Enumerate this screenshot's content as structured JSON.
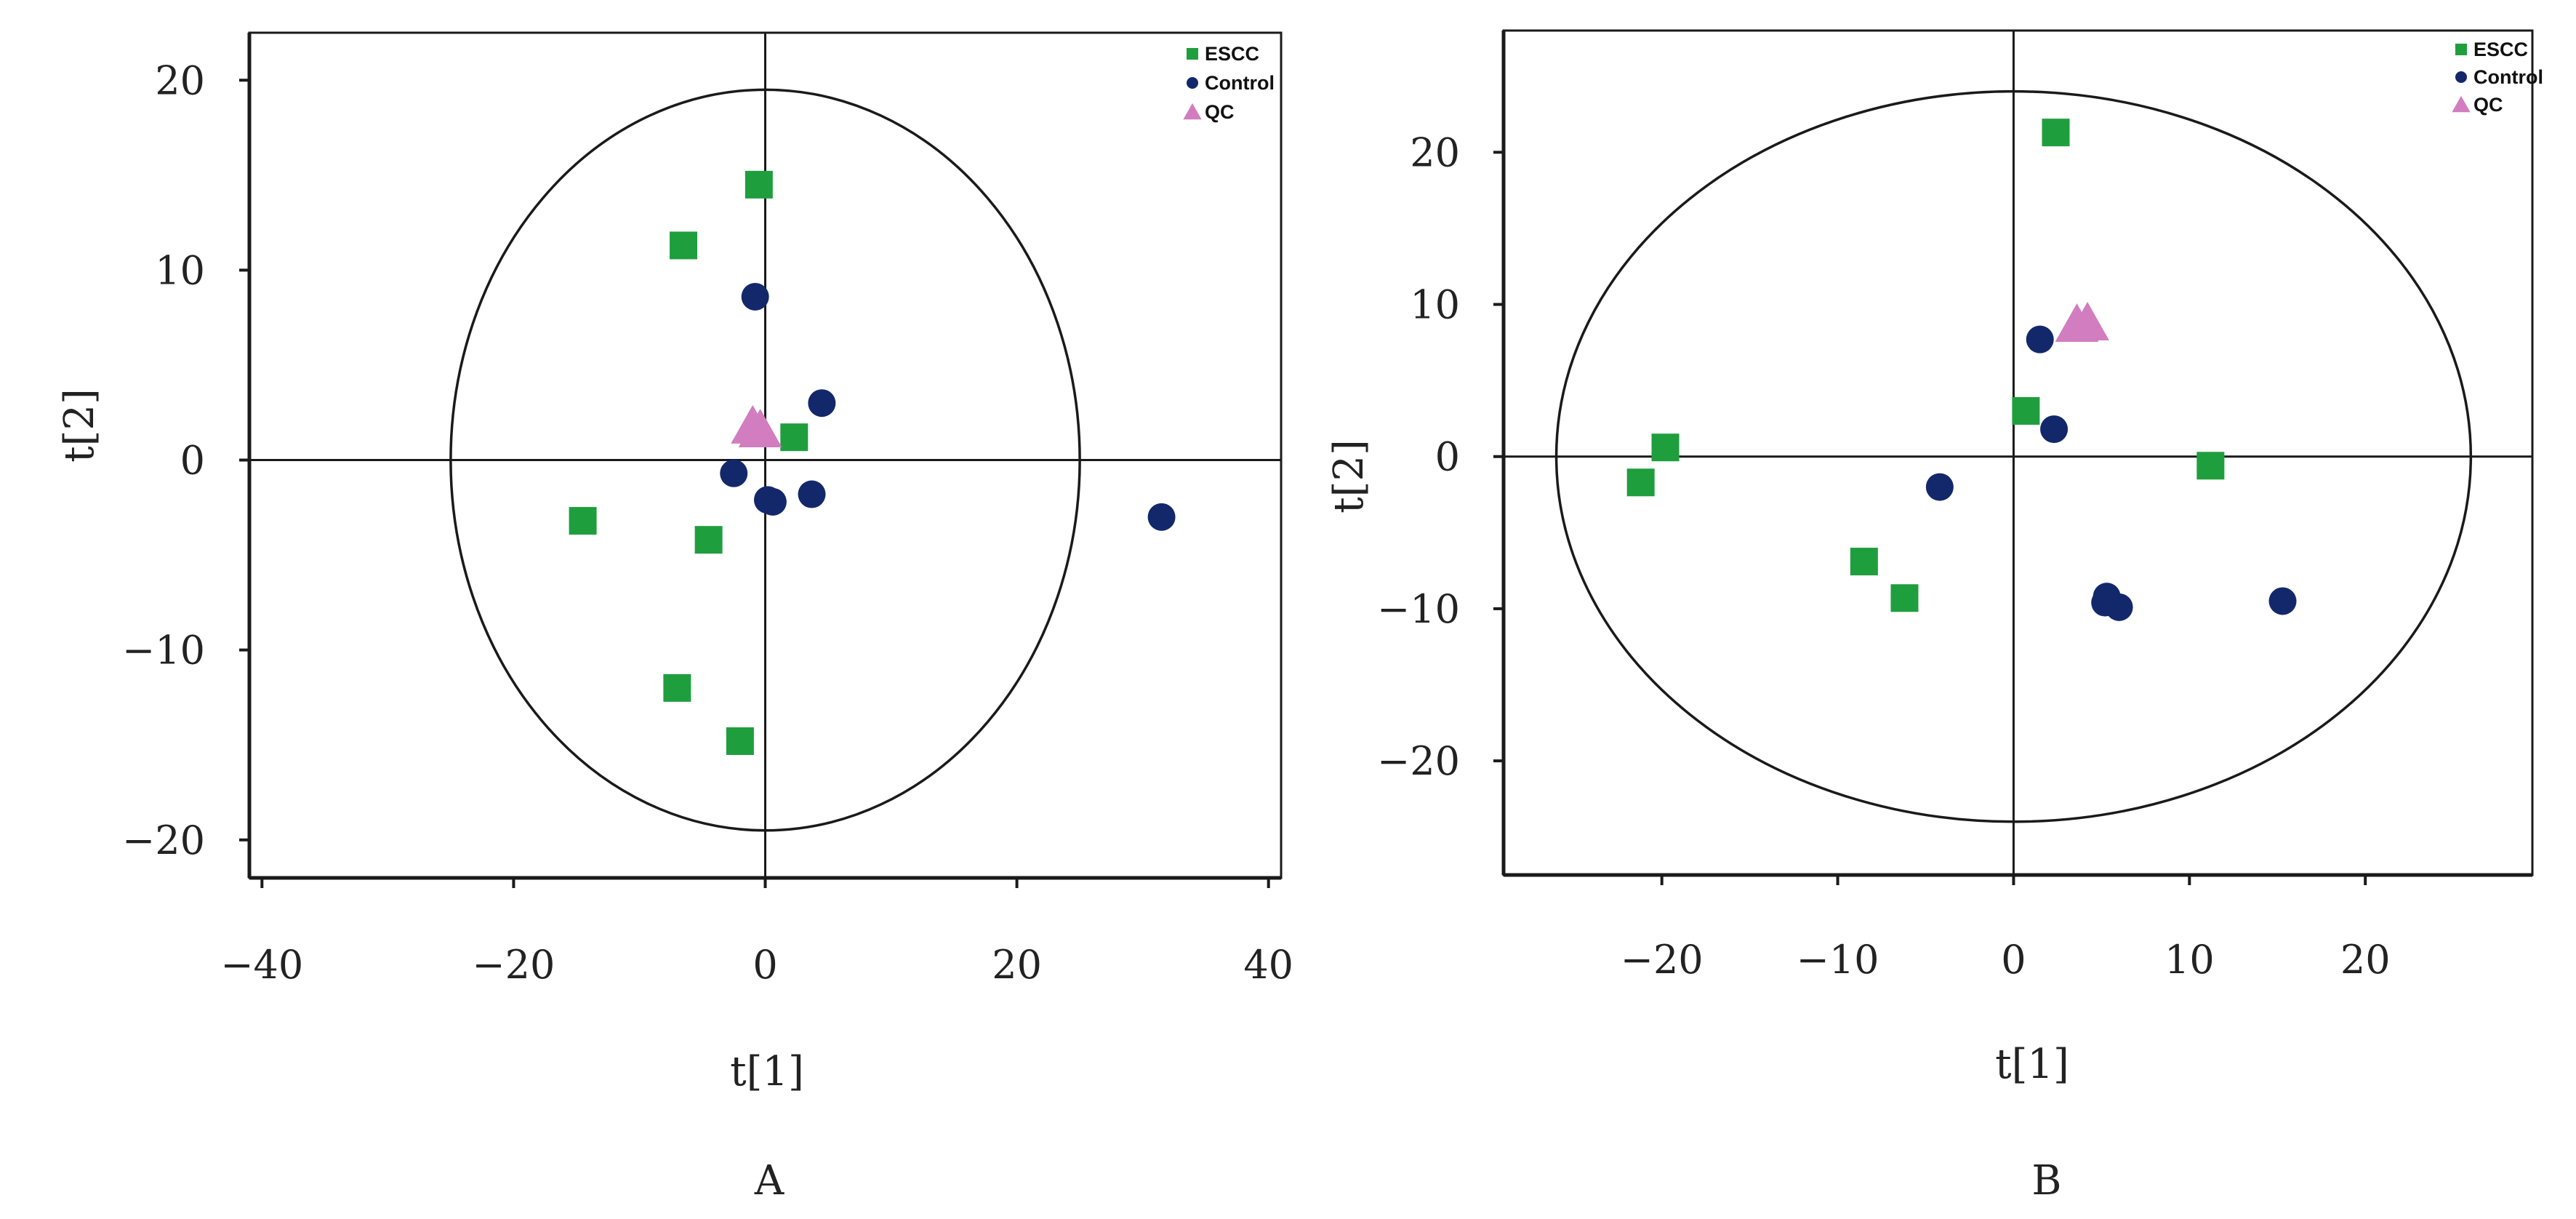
{
  "chart_data": [
    {
      "type": "scatter",
      "panel_label": "A",
      "xlabel": "t[1]",
      "ylabel": "t[2]",
      "xlim": [
        -41,
        41
      ],
      "ylim": [
        -22,
        22.5
      ],
      "xticks": [
        -40,
        -20,
        0,
        20,
        40
      ],
      "xtick_labels": [
        "−40",
        "−20",
        "0",
        "20",
        "40"
      ],
      "yticks": [
        -20,
        -10,
        0,
        10,
        20
      ],
      "ytick_labels": [
        "−20",
        "−10",
        "0",
        "10",
        "20"
      ],
      "ellipse": {
        "rx": 25,
        "ry": 19.5
      },
      "legend_position": "top-right",
      "series": [
        {
          "name": "ESCC",
          "marker": "square",
          "color": "#1f9e3e",
          "points": [
            [
              -0.5,
              14.5
            ],
            [
              -6.5,
              11.3
            ],
            [
              2.3,
              1.2
            ],
            [
              -14.5,
              -3.2
            ],
            [
              -4.5,
              -4.2
            ],
            [
              -7,
              -12
            ],
            [
              -2,
              -14.8
            ]
          ]
        },
        {
          "name": "Control",
          "marker": "circle",
          "color": "#13286b",
          "points": [
            [
              -0.8,
              8.6
            ],
            [
              4.5,
              3.0
            ],
            [
              -2.5,
              -0.7
            ],
            [
              0.2,
              -2.1
            ],
            [
              0.6,
              -2.2
            ],
            [
              3.7,
              -1.8
            ],
            [
              31.5,
              -3.0
            ]
          ]
        },
        {
          "name": "QC",
          "marker": "triangle",
          "color": "#d17dbf",
          "points": [
            [
              -1,
              1.8
            ],
            [
              -0.4,
              1.6
            ]
          ]
        }
      ]
    },
    {
      "type": "scatter",
      "panel_label": "B",
      "xlabel": "t[1]",
      "ylabel": "t[2]",
      "xlim": [
        -29,
        29.5
      ],
      "ylim": [
        -27.5,
        28
      ],
      "xticks": [
        -20,
        -10,
        0,
        10,
        20
      ],
      "xtick_labels": [
        "−20",
        "−10",
        "0",
        "10",
        "20"
      ],
      "yticks": [
        -20,
        -10,
        0,
        10,
        20
      ],
      "ytick_labels": [
        "−20",
        "−10",
        "0",
        "10",
        "20"
      ],
      "ellipse": {
        "rx": 26,
        "ry": 24
      },
      "legend_position": "top-right",
      "series": [
        {
          "name": "ESCC",
          "marker": "square",
          "color": "#1f9e3e",
          "points": [
            [
              2.4,
              21.3
            ],
            [
              0.7,
              3.0
            ],
            [
              -19.8,
              0.6
            ],
            [
              -21.2,
              -1.7
            ],
            [
              -8.5,
              -6.9
            ],
            [
              -6.2,
              -9.3
            ],
            [
              11.2,
              -0.6
            ]
          ]
        },
        {
          "name": "Control",
          "marker": "circle",
          "color": "#13286b",
          "points": [
            [
              1.5,
              7.7
            ],
            [
              2.3,
              1.8
            ],
            [
              -4.2,
              -2.0
            ],
            [
              5.3,
              -9.2
            ],
            [
              5.2,
              -9.6
            ],
            [
              6.0,
              -9.9
            ],
            [
              15.3,
              -9.5
            ]
          ]
        },
        {
          "name": "QC",
          "marker": "triangle",
          "color": "#d17dbf",
          "points": [
            [
              3.6,
              8.7
            ],
            [
              4.2,
              8.8
            ]
          ]
        }
      ]
    }
  ]
}
